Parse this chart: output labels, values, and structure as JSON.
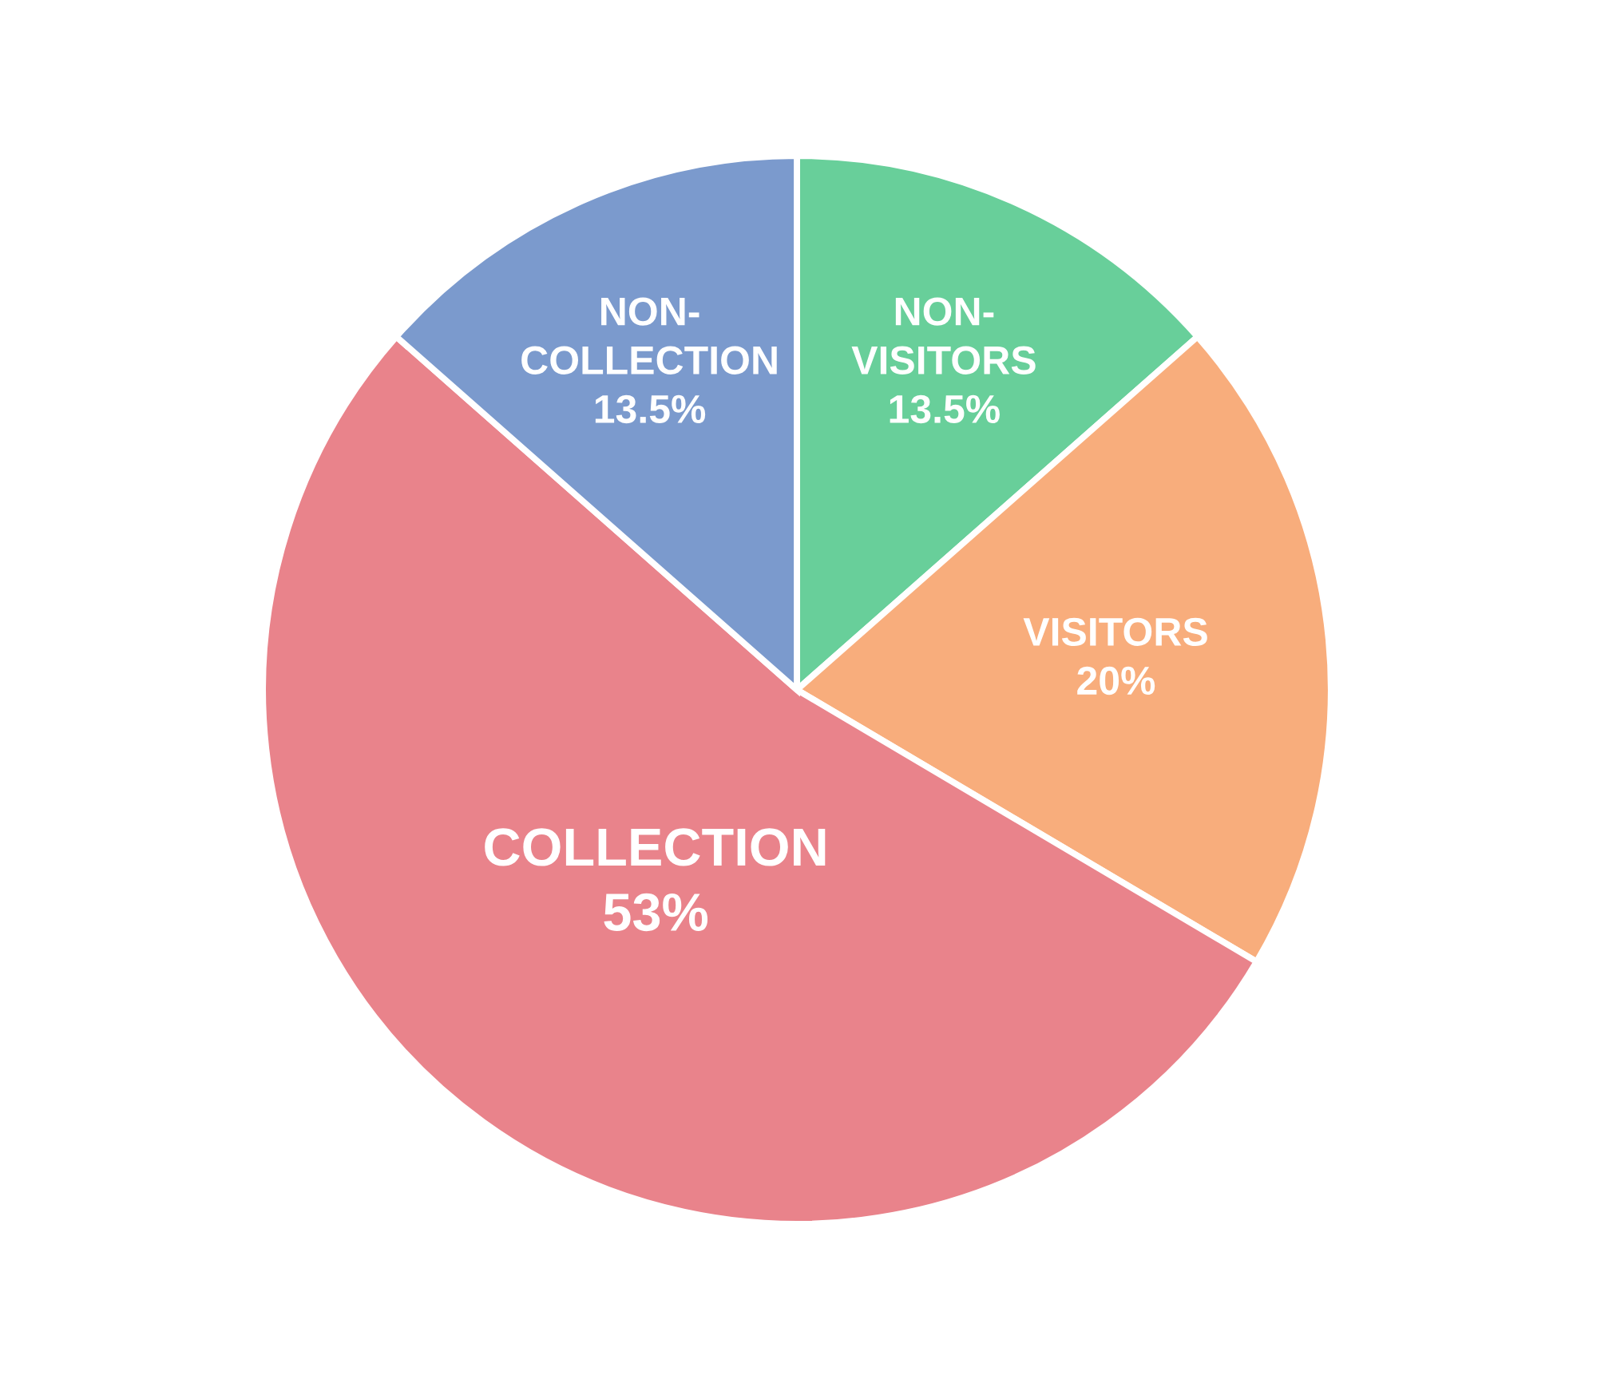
{
  "chart_data": {
    "type": "pie",
    "categories": [
      "NON-\nVISITORS",
      "VISITORS",
      "COLLECTION",
      "NON-\nCOLLECTION"
    ],
    "values": [
      13.5,
      20,
      53,
      13.5
    ],
    "colors": [
      "#68cf9a",
      "#f8ad7c",
      "#e9838b",
      "#7b9acd"
    ],
    "value_labels": [
      "13.5%",
      "20%",
      "53%",
      "13.5%"
    ]
  }
}
